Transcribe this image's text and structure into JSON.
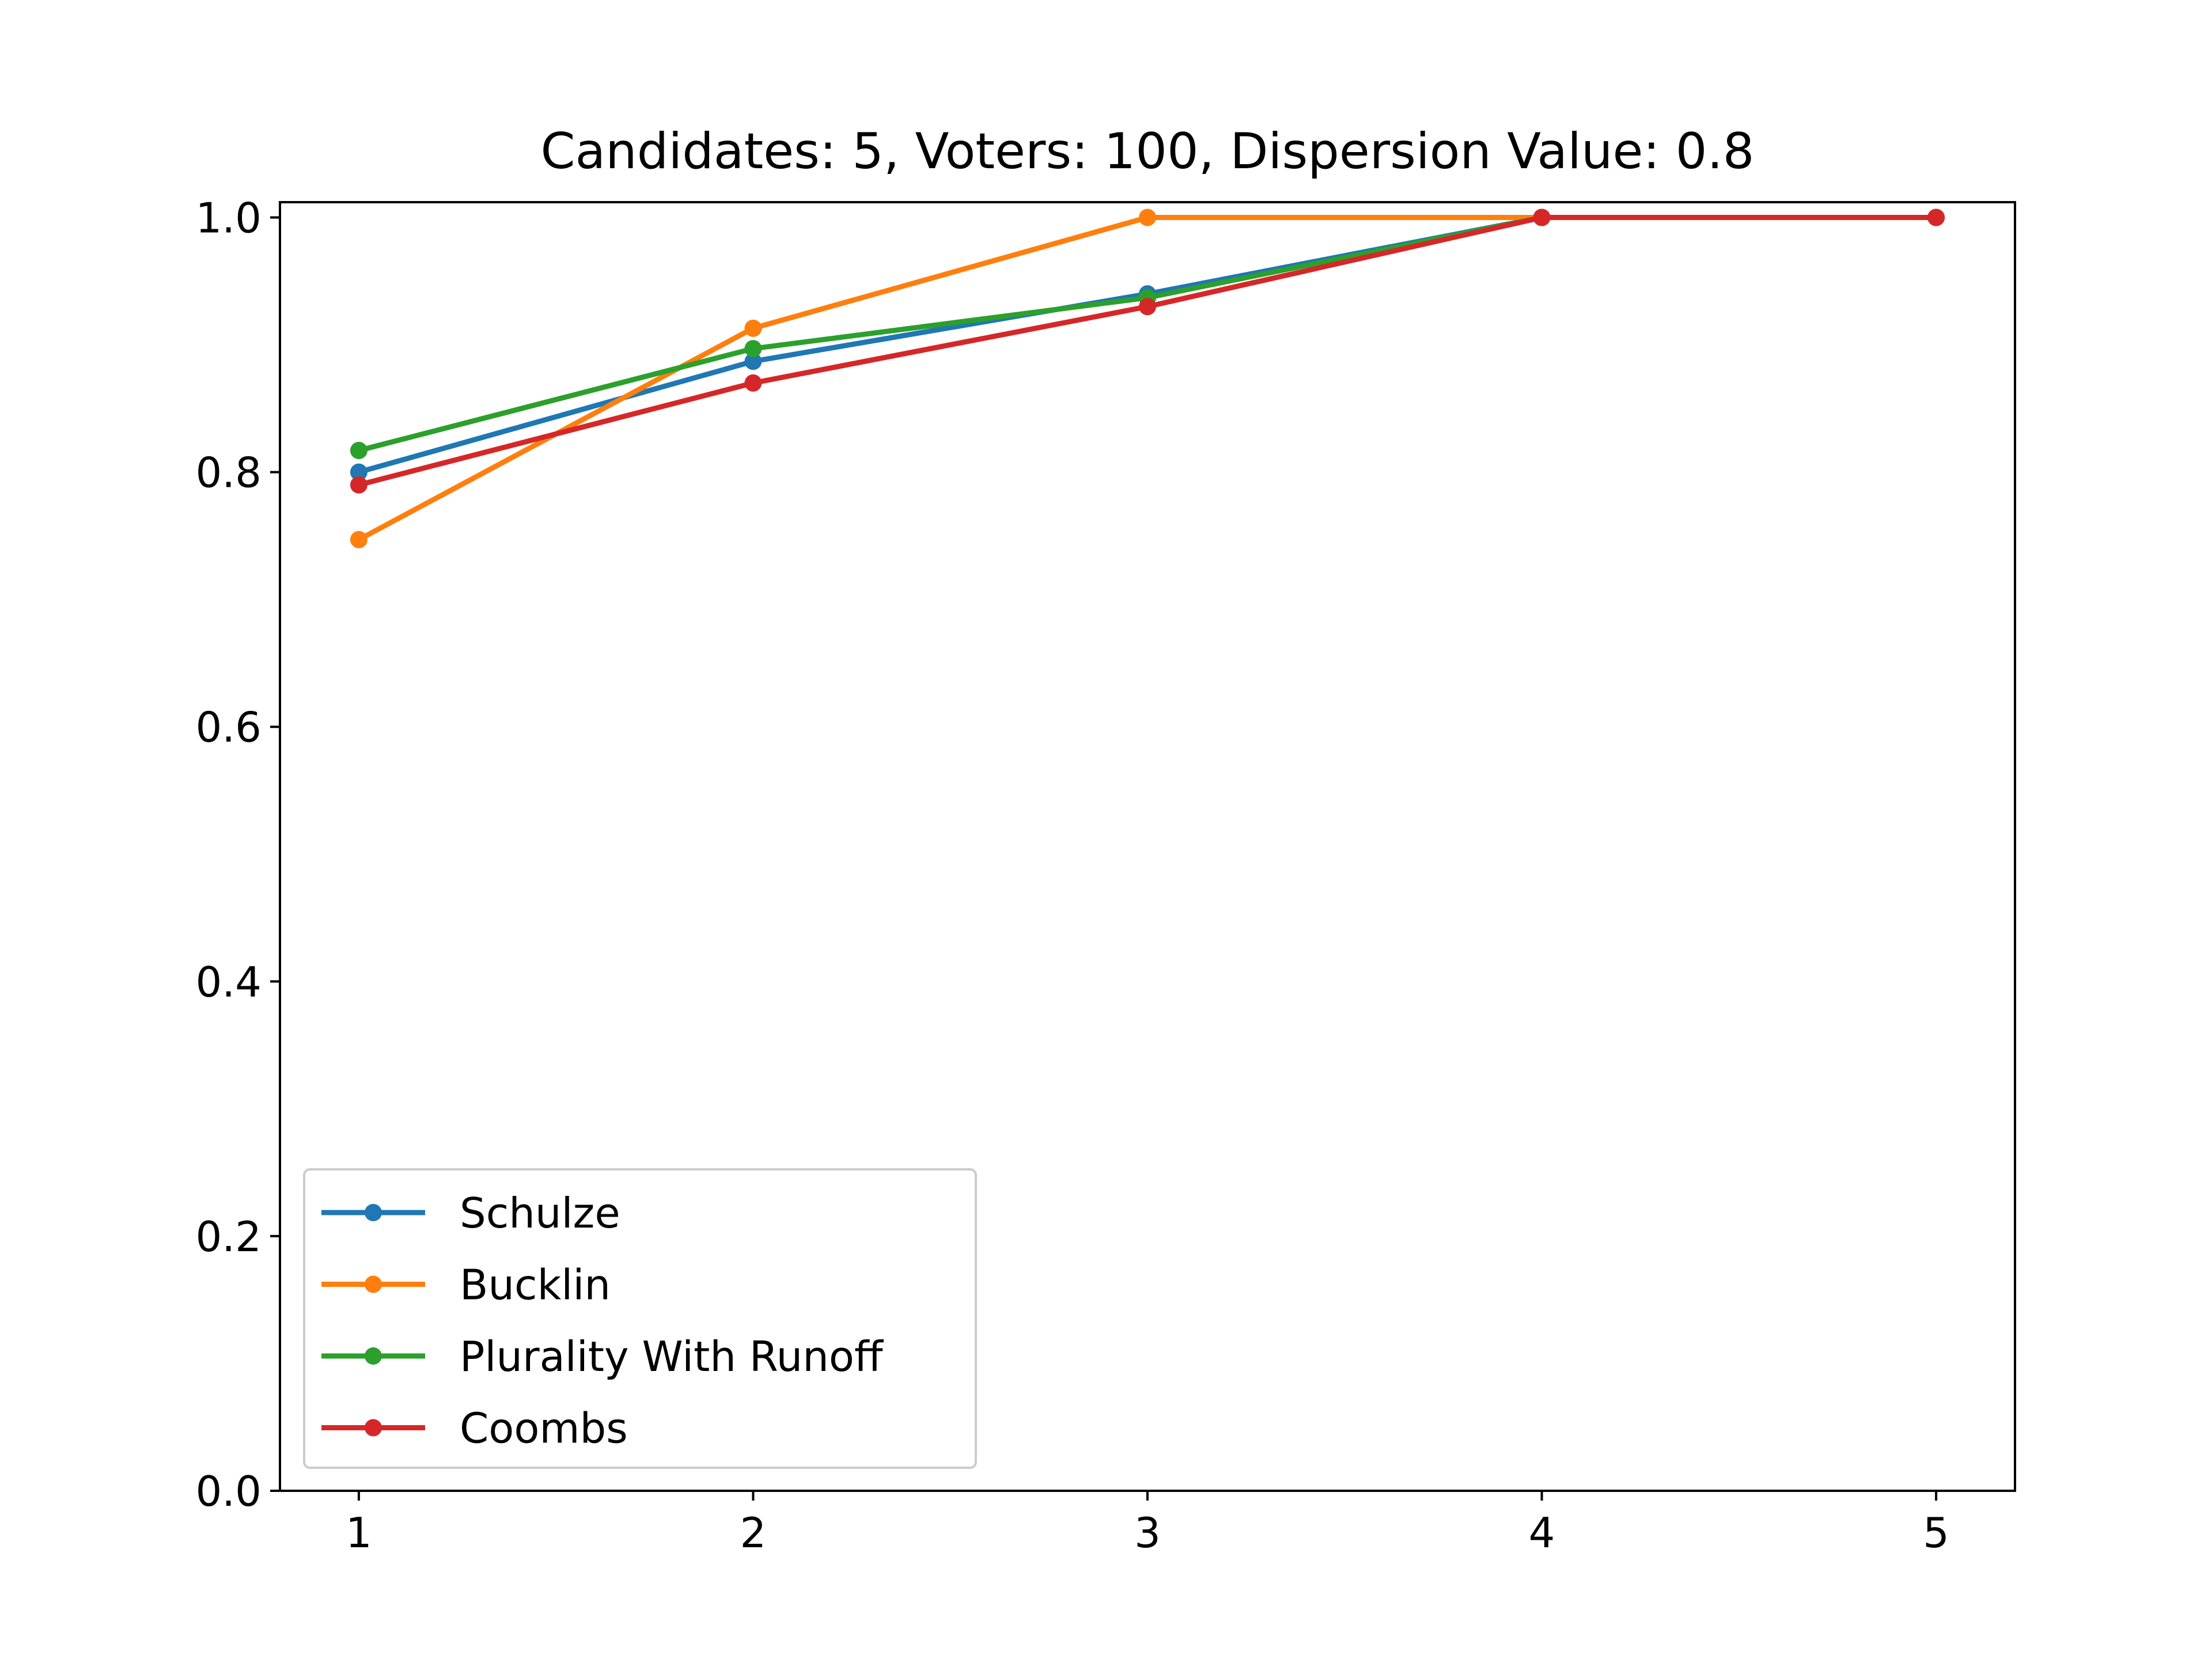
{
  "chart_data": {
    "type": "line",
    "title": "Candidates: 5, Voters: 100, Dispersion Value: 0.8",
    "xlabel": "",
    "ylabel": "",
    "x": [
      1,
      2,
      3,
      4,
      5
    ],
    "xlim": [
      0.8,
      5.2
    ],
    "ylim": [
      0.0,
      1.012
    ],
    "xticks": [
      "1",
      "2",
      "3",
      "4",
      "5"
    ],
    "yticks": [
      "0.0",
      "0.2",
      "0.4",
      "0.6",
      "0.8",
      "1.0"
    ],
    "grid": false,
    "legend_position": "lower-left",
    "series": [
      {
        "name": "Schulze",
        "color": "#1f77b4",
        "marker": "circle",
        "values": [
          0.8,
          0.887,
          0.94,
          1.0,
          1.0
        ]
      },
      {
        "name": "Bucklin",
        "color": "#ff7f0e",
        "marker": "circle",
        "values": [
          0.747,
          0.913,
          1.0,
          1.0,
          1.0
        ]
      },
      {
        "name": "Plurality With Runoff",
        "color": "#2ca02c",
        "marker": "circle",
        "values": [
          0.817,
          0.897,
          0.937,
          1.0,
          1.0
        ]
      },
      {
        "name": "Coombs",
        "color": "#d62728",
        "marker": "circle",
        "values": [
          0.79,
          0.87,
          0.93,
          1.0,
          1.0
        ]
      }
    ]
  }
}
